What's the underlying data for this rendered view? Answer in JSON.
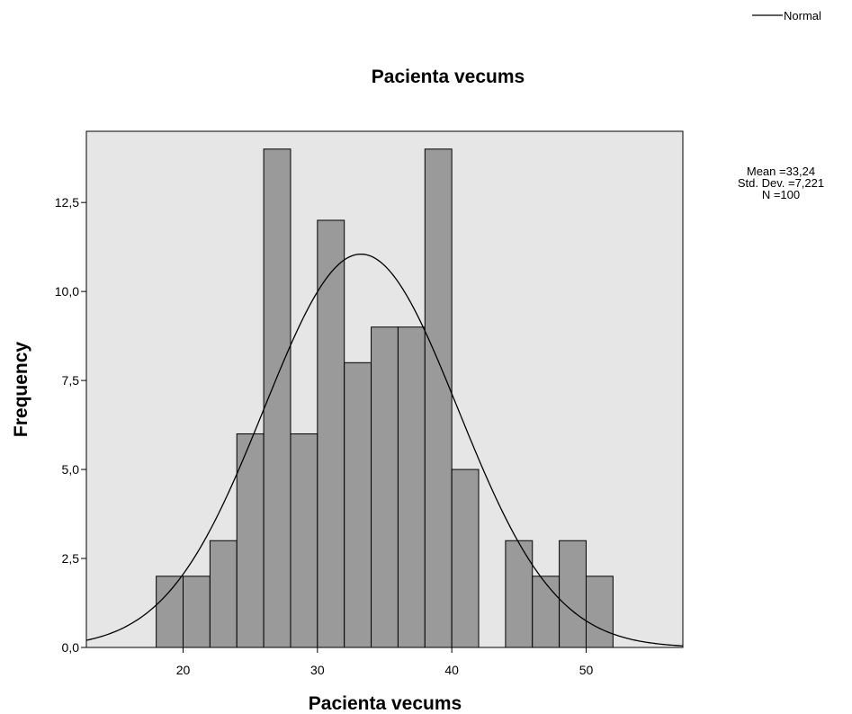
{
  "legend": {
    "label": "Normal"
  },
  "stats": {
    "mean": "Mean =33,24",
    "std_dev": "Std. Dev. =7,221",
    "n": "N =100"
  },
  "chart_data": {
    "type": "bar",
    "title": "Pacienta vecums",
    "xlabel": "Pacienta vecums",
    "ylabel": "Frequency",
    "bin_width": 2,
    "bins": [
      {
        "x0": 18,
        "x1": 20,
        "value": 2
      },
      {
        "x0": 20,
        "x1": 22,
        "value": 2
      },
      {
        "x0": 22,
        "x1": 24,
        "value": 3
      },
      {
        "x0": 24,
        "x1": 26,
        "value": 6
      },
      {
        "x0": 26,
        "x1": 28,
        "value": 14
      },
      {
        "x0": 28,
        "x1": 30,
        "value": 6
      },
      {
        "x0": 30,
        "x1": 32,
        "value": 12
      },
      {
        "x0": 32,
        "x1": 34,
        "value": 8
      },
      {
        "x0": 34,
        "x1": 36,
        "value": 9
      },
      {
        "x0": 36,
        "x1": 38,
        "value": 9
      },
      {
        "x0": 38,
        "x1": 40,
        "value": 14
      },
      {
        "x0": 40,
        "x1": 42,
        "value": 5
      },
      {
        "x0": 42,
        "x1": 44,
        "value": 0
      },
      {
        "x0": 44,
        "x1": 46,
        "value": 3
      },
      {
        "x0": 46,
        "x1": 48,
        "value": 2
      },
      {
        "x0": 48,
        "x1": 50,
        "value": 3
      },
      {
        "x0": 50,
        "x1": 52,
        "value": 2
      }
    ],
    "xlim": [
      12.8,
      57.2
    ],
    "ylim": [
      0,
      14.5
    ],
    "x_ticks": [
      20,
      30,
      40,
      50
    ],
    "x_tick_labels": [
      "20",
      "30",
      "40",
      "50"
    ],
    "y_ticks": [
      0,
      2.5,
      5,
      7.5,
      10,
      12.5
    ],
    "y_tick_labels": [
      "0,0",
      "2,5",
      "5,0",
      "7,5",
      "10,0",
      "12,5"
    ],
    "normal_curve": {
      "mean": 33.24,
      "std_dev": 7.221,
      "n": 100
    },
    "grid": false,
    "legend_position": "top-right",
    "colors": {
      "plot_background": "#e6e6e6",
      "bar_fill": "#9a9a9a",
      "bar_stroke": "#000000",
      "curve": "#000000"
    }
  }
}
